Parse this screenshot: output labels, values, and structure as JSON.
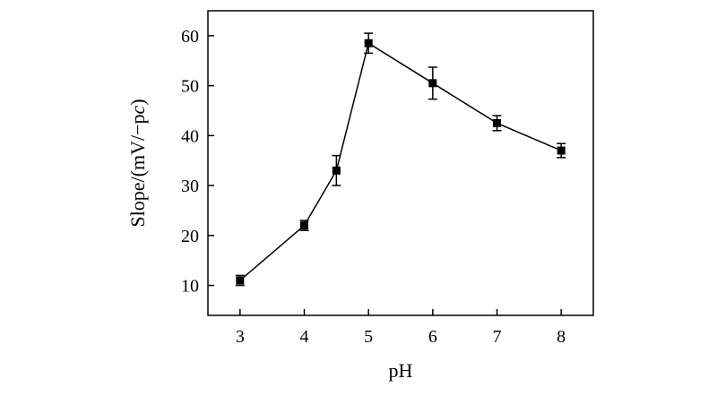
{
  "chart_data": {
    "type": "line",
    "xlabel": "pH",
    "ylabel_parts": [
      "Slope/(mV/−p",
      "c",
      ")"
    ],
    "xlim": [
      2.5,
      8.5
    ],
    "ylim": [
      4,
      65
    ],
    "x_ticks": [
      3,
      4,
      5,
      6,
      7,
      8
    ],
    "y_ticks": [
      10,
      20,
      30,
      40,
      50,
      60
    ],
    "grid": false,
    "legend": "none",
    "colors": {
      "line": "#000000",
      "marker": "#000000"
    },
    "series": [
      {
        "x": [
          3,
          4,
          4.5,
          5,
          6,
          7,
          8
        ],
        "y": [
          11,
          22,
          33,
          58.5,
          50.5,
          42.5,
          37
        ],
        "error": [
          1.0,
          1.0,
          3.0,
          2.0,
          3.2,
          1.5,
          1.4
        ]
      }
    ]
  }
}
